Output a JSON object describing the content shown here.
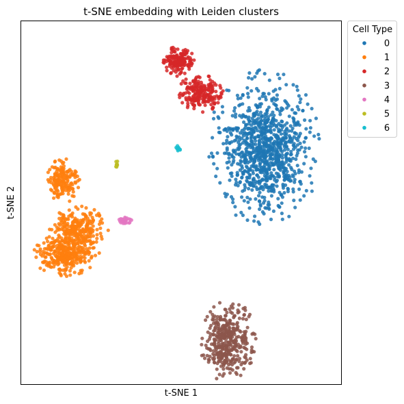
{
  "chart_data": {
    "type": "scatter",
    "title": "t-SNE embedding with Leiden clusters",
    "xlabel": "t-SNE 1",
    "ylabel": "t-SNE 2",
    "xlim": [
      0,
      100
    ],
    "ylim": [
      0,
      100
    ],
    "grid": false,
    "ticks": "none",
    "legend": {
      "title": "Cell Type",
      "placement": "outside-top-right"
    },
    "series": [
      {
        "name": "0",
        "color": "#1f77b4",
        "count": 1000,
        "cx": 76,
        "cy": 65,
        "rx": 17,
        "ry": 21,
        "spread": 0.38
      },
      {
        "name": "1",
        "color": "#ff7f0e",
        "count": 750,
        "cx": 16,
        "cy": 44,
        "rx": 10,
        "ry": 14,
        "spread": 0.4,
        "sub": [
          {
            "cx": 13,
            "cy": 56,
            "rx": 5,
            "ry": 6,
            "w": 0.22
          },
          {
            "cx": 18,
            "cy": 43,
            "rx": 9,
            "ry": 6,
            "w": 0.33
          },
          {
            "cx": 14,
            "cy": 36,
            "rx": 10,
            "ry": 6,
            "w": 0.45
          }
        ]
      },
      {
        "name": "2",
        "color": "#d62728",
        "count": 380,
        "cx": 52,
        "cy": 82,
        "rx": 9,
        "ry": 12,
        "spread": 0.45,
        "sub": [
          {
            "cx": 49,
            "cy": 89,
            "rx": 5,
            "ry": 4,
            "w": 0.45
          },
          {
            "cx": 56,
            "cy": 80,
            "rx": 7,
            "ry": 5,
            "w": 0.55
          }
        ]
      },
      {
        "name": "3",
        "color": "#8c564b",
        "count": 400,
        "cx": 64.5,
        "cy": 12,
        "rx": 8.5,
        "ry": 11,
        "spread": 0.4
      },
      {
        "name": "4",
        "color": "#e377c2",
        "count": 25,
        "cx": 32.5,
        "cy": 45,
        "rx": 2.2,
        "ry": 1.0,
        "spread": 0.5
      },
      {
        "name": "5",
        "color": "#bcbd22",
        "count": 8,
        "cx": 29.5,
        "cy": 60.5,
        "rx": 0.8,
        "ry": 1.2,
        "spread": 0.5
      },
      {
        "name": "6",
        "color": "#17becf",
        "count": 10,
        "cx": 48.8,
        "cy": 65,
        "rx": 1.0,
        "ry": 0.8,
        "spread": 0.5
      }
    ]
  }
}
